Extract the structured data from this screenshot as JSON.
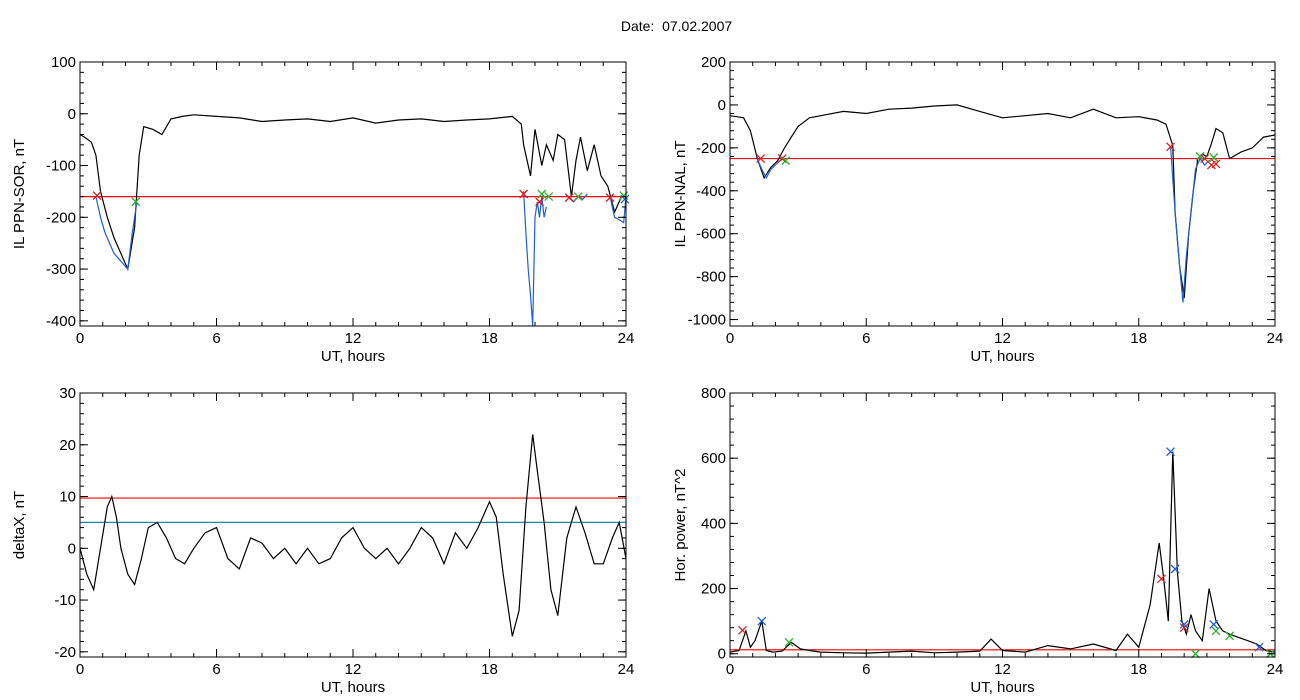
{
  "page": {
    "title": "Date:  07.02.2007"
  },
  "chart_data": [
    {
      "type": "line",
      "xlabel": "UT, hours",
      "ylabel": "IL PPN-SOR, nT",
      "xlim": [
        0,
        24
      ],
      "ylim": [
        -410,
        100
      ],
      "xticks": [
        0,
        6,
        12,
        18,
        24
      ],
      "yticks": [
        100,
        0,
        -100,
        -200,
        -300,
        -400
      ],
      "threshold_lines": [
        {
          "y": -160,
          "color": "#ff0000"
        }
      ],
      "series": [
        {
          "color": "#000000",
          "x": [
            0,
            0.2,
            0.5,
            0.7,
            0.9,
            1.2,
            1.5,
            1.8,
            2.1,
            2.4,
            2.6,
            2.8,
            3.2,
            3.6,
            4.0,
            4.5,
            5.0,
            6,
            7,
            8,
            9,
            10,
            11,
            12,
            13,
            14,
            15,
            16,
            17,
            18,
            19,
            19.4,
            19.5,
            19.8,
            20.0,
            20.3,
            20.5,
            20.8,
            21.0,
            21.3,
            21.6,
            21.8,
            22.0,
            22.3,
            22.6,
            22.9,
            23.2,
            23.5,
            23.8,
            24
          ],
          "y": [
            -40,
            -45,
            -55,
            -80,
            -150,
            -200,
            -240,
            -270,
            -300,
            -220,
            -80,
            -25,
            -30,
            -40,
            -10,
            -5,
            -2,
            -5,
            -8,
            -15,
            -12,
            -10,
            -15,
            -8,
            -18,
            -12,
            -10,
            -15,
            -12,
            -10,
            -5,
            -20,
            -60,
            -120,
            -30,
            -100,
            -60,
            -90,
            -40,
            -50,
            -160,
            -90,
            -45,
            -110,
            -60,
            -120,
            -140,
            -190,
            -160,
            -160
          ]
        },
        {
          "color": "#1f5fd6",
          "x": [
            0.7,
            0.9,
            1.1,
            1.3,
            1.5,
            1.7,
            1.9,
            2.1,
            2.3,
            2.5
          ],
          "y": [
            -160,
            -200,
            -230,
            -250,
            -270,
            -280,
            -290,
            -300,
            -230,
            -170
          ]
        },
        {
          "color": "#1f5fd6",
          "x": [
            19.5,
            19.6,
            19.7,
            19.8,
            19.9,
            20.0,
            20.1,
            20.2,
            20.3,
            20.4,
            20.5
          ],
          "y": [
            -150,
            -230,
            -300,
            -350,
            -410,
            -200,
            -170,
            -200,
            -160,
            -200,
            -180
          ]
        },
        {
          "color": "#1f5fd6",
          "x": [
            21.5,
            21.7,
            21.9,
            22.1,
            22.3
          ],
          "y": [
            -160,
            -170,
            -160,
            -165,
            -155
          ]
        },
        {
          "color": "#1f5fd6",
          "x": [
            23.3,
            23.5,
            23.7,
            23.9,
            24
          ],
          "y": [
            -160,
            -200,
            -205,
            -210,
            -160
          ]
        }
      ],
      "markers": [
        {
          "x": 0.75,
          "y": -158,
          "color": "#d62020"
        },
        {
          "x": 2.45,
          "y": -170,
          "color": "#2ab02a"
        },
        {
          "x": 19.5,
          "y": -155,
          "color": "#d62020"
        },
        {
          "x": 20.2,
          "y": -170,
          "color": "#d62020"
        },
        {
          "x": 20.3,
          "y": -155,
          "color": "#2ab02a"
        },
        {
          "x": 20.6,
          "y": -160,
          "color": "#2ab02a"
        },
        {
          "x": 21.5,
          "y": -162,
          "color": "#d62020"
        },
        {
          "x": 21.9,
          "y": -160,
          "color": "#2ab02a"
        },
        {
          "x": 23.3,
          "y": -162,
          "color": "#d62020"
        },
        {
          "x": 23.9,
          "y": -158,
          "color": "#2ab02a"
        },
        {
          "x": 23.95,
          "y": -165,
          "color": "#1f5fd6"
        }
      ]
    },
    {
      "type": "line",
      "xlabel": "UT, hours",
      "ylabel": "IL PPN-NAL, nT",
      "xlim": [
        0,
        24
      ],
      "ylim": [
        -1030,
        200
      ],
      "xticks": [
        0,
        6,
        12,
        18,
        24
      ],
      "yticks": [
        200,
        0,
        -200,
        -400,
        -600,
        -800,
        -1000
      ],
      "threshold_lines": [
        {
          "y": -250,
          "color": "#ff0000"
        }
      ],
      "series": [
        {
          "color": "#000000",
          "x": [
            0,
            0.3,
            0.6,
            0.9,
            1.2,
            1.5,
            1.8,
            2.1,
            2.4,
            2.7,
            3.0,
            3.5,
            4.0,
            5,
            6,
            7,
            8,
            9,
            10,
            11,
            12,
            13,
            14,
            15,
            16,
            17,
            18,
            18.8,
            19.2,
            19.5,
            19.6,
            19.8,
            20.0,
            20.2,
            20.4,
            20.6,
            20.8,
            21.0,
            21.2,
            21.4,
            21.7,
            22.0,
            22.5,
            23.0,
            23.5,
            24
          ],
          "y": [
            -50,
            -55,
            -60,
            -120,
            -250,
            -340,
            -290,
            -260,
            -200,
            -150,
            -100,
            -60,
            -50,
            -30,
            -40,
            -20,
            -15,
            -5,
            0,
            -30,
            -60,
            -50,
            -40,
            -60,
            -20,
            -60,
            -55,
            -70,
            -90,
            -190,
            -500,
            -750,
            -900,
            -600,
            -400,
            -250,
            -230,
            -240,
            -180,
            -110,
            -130,
            -250,
            -220,
            -200,
            -150,
            -140
          ]
        },
        {
          "color": "#1f5fd6",
          "x": [
            1.2,
            1.4,
            1.6,
            1.8,
            2.0,
            2.2,
            2.4
          ],
          "y": [
            -250,
            -300,
            -340,
            -300,
            -280,
            -260,
            -250
          ]
        },
        {
          "color": "#1f5fd6",
          "x": [
            19.4,
            19.6,
            19.8,
            19.95,
            20.1,
            20.3,
            20.5,
            20.7,
            20.9,
            21.1,
            21.3
          ],
          "y": [
            -190,
            -500,
            -750,
            -920,
            -700,
            -500,
            -300,
            -250,
            -280,
            -260,
            -250
          ]
        }
      ],
      "markers": [
        {
          "x": 1.35,
          "y": -250,
          "color": "#d62020"
        },
        {
          "x": 2.3,
          "y": -250,
          "color": "#d62020"
        },
        {
          "x": 2.45,
          "y": -260,
          "color": "#2ab02a"
        },
        {
          "x": 19.4,
          "y": -195,
          "color": "#d62020"
        },
        {
          "x": 20.7,
          "y": -240,
          "color": "#2ab02a"
        },
        {
          "x": 20.9,
          "y": -250,
          "color": "#d62020"
        },
        {
          "x": 21.3,
          "y": -245,
          "color": "#2ab02a"
        },
        {
          "x": 21.4,
          "y": -275,
          "color": "#d62020"
        },
        {
          "x": 21.2,
          "y": -280,
          "color": "#d62020"
        }
      ]
    },
    {
      "type": "line",
      "xlabel": "UT, hours",
      "ylabel": "deltaX, nT",
      "xlim": [
        0,
        24
      ],
      "ylim": [
        -21,
        30
      ],
      "xticks": [
        0,
        6,
        12,
        18,
        24
      ],
      "yticks": [
        30,
        20,
        10,
        0,
        -10,
        -20
      ],
      "threshold_lines": [
        {
          "y": 9.7,
          "color": "#ff0000"
        },
        {
          "y": 5.0,
          "color": "#1a8fa0"
        }
      ],
      "series": [
        {
          "color": "#000000",
          "x": [
            0,
            0.3,
            0.6,
            0.9,
            1.2,
            1.4,
            1.6,
            1.8,
            2.1,
            2.4,
            2.7,
            3.0,
            3.4,
            3.8,
            4.2,
            4.6,
            5.0,
            5.5,
            6.0,
            6.5,
            7.0,
            7.5,
            8.0,
            8.5,
            9.0,
            9.5,
            10.0,
            10.5,
            11.0,
            11.5,
            12.0,
            12.5,
            13.0,
            13.5,
            14.0,
            14.5,
            15.0,
            15.5,
            16.0,
            16.5,
            17.0,
            17.5,
            18.0,
            18.3,
            18.6,
            19.0,
            19.3,
            19.6,
            19.9,
            20.1,
            20.4,
            20.7,
            21.0,
            21.4,
            21.8,
            22.2,
            22.6,
            23.0,
            23.4,
            23.7,
            24
          ],
          "y": [
            0,
            -5,
            -8,
            0,
            8,
            10,
            6,
            0,
            -5,
            -7,
            -2,
            4,
            5,
            2,
            -2,
            -3,
            0,
            3,
            4,
            -2,
            -4,
            2,
            1,
            -2,
            0,
            -3,
            0,
            -3,
            -2,
            2,
            4,
            0,
            -2,
            0,
            -3,
            0,
            4,
            2,
            -3,
            3,
            0,
            4,
            9,
            6,
            -5,
            -17,
            -12,
            8,
            22,
            15,
            5,
            -8,
            -13,
            2,
            8,
            3,
            -3,
            -3,
            2,
            5,
            -2
          ]
        }
      ],
      "markers": []
    },
    {
      "type": "line",
      "xlabel": "UT, hours",
      "ylabel": "Hor. power, nT^2",
      "xlim": [
        0,
        24
      ],
      "ylim": [
        -10,
        800
      ],
      "xticks": [
        0,
        6,
        12,
        18,
        24
      ],
      "yticks": [
        800,
        600,
        400,
        200,
        0
      ],
      "threshold_lines": [
        {
          "y": 12,
          "color": "#ff0000"
        }
      ],
      "series": [
        {
          "color": "#000000",
          "x": [
            0,
            0.4,
            0.7,
            0.9,
            1.1,
            1.4,
            1.6,
            1.9,
            2.3,
            2.7,
            3.1,
            3.5,
            4.0,
            5,
            6,
            7,
            8,
            9,
            10,
            11,
            11.5,
            12,
            13,
            14,
            15,
            16,
            17,
            17.5,
            18.0,
            18.5,
            18.9,
            19.1,
            19.3,
            19.5,
            19.7,
            19.9,
            20.1,
            20.3,
            20.5,
            20.8,
            21.1,
            21.4,
            21.7,
            22.0,
            22.4,
            22.8,
            23.2,
            23.6,
            24
          ],
          "y": [
            5,
            10,
            70,
            20,
            40,
            100,
            10,
            5,
            8,
            35,
            15,
            10,
            5,
            3,
            2,
            5,
            8,
            3,
            5,
            8,
            45,
            10,
            5,
            25,
            15,
            30,
            10,
            60,
            20,
            150,
            340,
            230,
            100,
            620,
            250,
            100,
            60,
            120,
            70,
            40,
            200,
            100,
            70,
            60,
            50,
            40,
            30,
            10,
            5
          ]
        }
      ],
      "markers": [
        {
          "x": 0.55,
          "y": 72,
          "color": "#d62020"
        },
        {
          "x": 1.4,
          "y": 100,
          "color": "#1f5fd6"
        },
        {
          "x": 2.6,
          "y": 35,
          "color": "#2ab02a"
        },
        {
          "x": 19.0,
          "y": 230,
          "color": "#d62020"
        },
        {
          "x": 19.4,
          "y": 620,
          "color": "#1f5fd6"
        },
        {
          "x": 19.6,
          "y": 260,
          "color": "#1f5fd6"
        },
        {
          "x": 20.0,
          "y": 80,
          "color": "#d62020"
        },
        {
          "x": 20.0,
          "y": 90,
          "color": "#1f5fd6"
        },
        {
          "x": 20.5,
          "y": 0,
          "color": "#2ab02a"
        },
        {
          "x": 21.3,
          "y": 90,
          "color": "#1f5fd6"
        },
        {
          "x": 21.4,
          "y": 70,
          "color": "#2ab02a"
        },
        {
          "x": 22.0,
          "y": 55,
          "color": "#2ab02a"
        },
        {
          "x": 23.3,
          "y": 20,
          "color": "#1f5fd6"
        },
        {
          "x": 23.8,
          "y": 0,
          "color": "#2ab02a"
        }
      ]
    }
  ]
}
